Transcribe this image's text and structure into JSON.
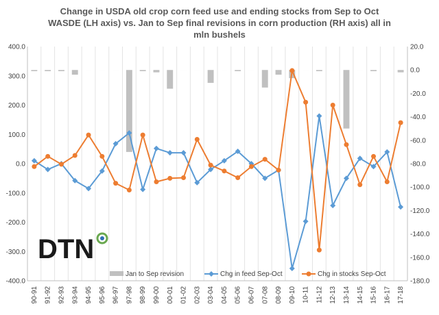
{
  "chart_data": {
    "type": "bar+line",
    "title_lines": [
      "Change in USDA old crop corn feed use and ending stocks from Sep to Oct",
      "WASDE  (LH axis) vs. Jan to Sep final revisions in corn production (RH axis) all in",
      "mln bushels"
    ],
    "categories": [
      "90-91",
      "91-92",
      "92-93",
      "93-94",
      "94-95",
      "95-96",
      "96-97",
      "97-98",
      "98-99",
      "99-00",
      "00-01",
      "01-02",
      "02-03",
      "03-04",
      "04-05",
      "05-06",
      "06-07",
      "07-08",
      "08-09",
      "09-10",
      "10-11",
      "11-12",
      "12-13",
      "13-14",
      "14-15",
      "15-16",
      "16-17",
      "17-18"
    ],
    "left_axis": {
      "ylim": [
        -400,
        400
      ],
      "ticks": [
        "400.0",
        "300.0",
        "200.0",
        "100.0",
        "0.0",
        "-100.0",
        "-200.0",
        "-300.0",
        "-400.0"
      ],
      "tick_values": [
        400,
        300,
        200,
        100,
        0,
        -100,
        -200,
        -300,
        -400
      ]
    },
    "right_axis": {
      "ylim": [
        -180,
        20
      ],
      "ticks": [
        "20.0",
        "0.0",
        "-20.0",
        "-40.0",
        "-60.0",
        "-80.0",
        "-100.0",
        "-120.0",
        "-140.0",
        "-160.0",
        "-180.0"
      ],
      "tick_values": [
        20,
        0,
        -20,
        -40,
        -60,
        -80,
        -100,
        -120,
        -140,
        -160,
        -180
      ]
    },
    "series": [
      {
        "name": "Jan to Sep revision",
        "kind": "bar",
        "axis": "right",
        "color": "#c0c0c0",
        "values": [
          -1,
          -1,
          -1,
          -4,
          0,
          0,
          0,
          -70,
          -1,
          -2,
          -16,
          0,
          0,
          -11,
          0,
          -1,
          0,
          -15,
          -4,
          -7,
          0,
          -1,
          0,
          -50,
          0,
          -1,
          0,
          -2
        ]
      },
      {
        "name": "Chg in feed Sep-Oct",
        "kind": "line",
        "axis": "left",
        "color": "#5b9bd5",
        "values": [
          10,
          -20,
          0,
          -58,
          -85,
          -25,
          68,
          105,
          -88,
          52,
          37,
          37,
          -65,
          -20,
          10,
          42,
          0,
          -50,
          -22,
          -358,
          -197,
          163,
          -143,
          -50,
          18,
          -10,
          40,
          -148
        ]
      },
      {
        "name": "Chg in stocks Sep-Oct",
        "kind": "line",
        "axis": "left",
        "color": "#ed7d31",
        "values": [
          -10,
          25,
          -2,
          28,
          98,
          25,
          -67,
          -90,
          98,
          -62,
          -50,
          -48,
          83,
          -5,
          -25,
          -48,
          -10,
          15,
          -22,
          318,
          210,
          -295,
          200,
          65,
          -72,
          25,
          -62,
          140
        ]
      }
    ],
    "legend_position": "bottom",
    "grid": "vertical"
  },
  "logo": {
    "text": "DTN",
    "accent_color": "#6aa84f"
  }
}
